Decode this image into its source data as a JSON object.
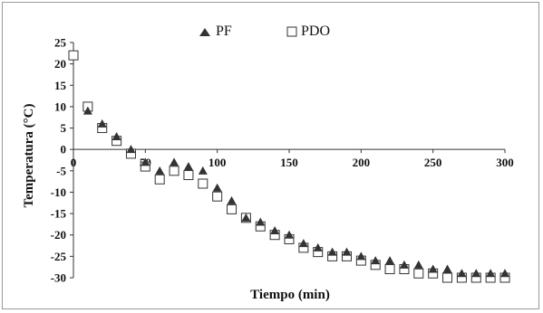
{
  "chart_data": {
    "type": "scatter",
    "title": "",
    "xlabel": "Tiempo (min)",
    "ylabel": "Temperatura (°C)",
    "xlim": [
      0,
      300
    ],
    "ylim": [
      -30,
      25
    ],
    "xticks": [
      "0",
      "50",
      "100",
      "150",
      "200",
      "250",
      "300"
    ],
    "yticks": [
      "25",
      "20",
      "15",
      "10",
      "5",
      "0",
      "-5",
      "-10",
      "-15",
      "-20",
      "-25",
      "-30"
    ],
    "grid": false,
    "legend_position": "top",
    "series": [
      {
        "name": "PF",
        "marker": "filled-triangle",
        "color": "#333333",
        "points": [
          [
            10,
            9
          ],
          [
            20,
            6
          ],
          [
            30,
            3
          ],
          [
            40,
            0
          ],
          [
            50,
            -3
          ],
          [
            60,
            -5
          ],
          [
            70,
            -3
          ],
          [
            80,
            -4
          ],
          [
            90,
            -5
          ],
          [
            100,
            -9
          ],
          [
            110,
            -12
          ],
          [
            120,
            -16
          ],
          [
            130,
            -17
          ],
          [
            140,
            -19
          ],
          [
            150,
            -20
          ],
          [
            160,
            -22
          ],
          [
            170,
            -23
          ],
          [
            180,
            -24
          ],
          [
            190,
            -24
          ],
          [
            200,
            -25
          ],
          [
            210,
            -26
          ],
          [
            220,
            -26
          ],
          [
            230,
            -27
          ],
          [
            240,
            -27
          ],
          [
            250,
            -28
          ],
          [
            260,
            -28
          ],
          [
            270,
            -29
          ],
          [
            280,
            -29
          ],
          [
            290,
            -29
          ],
          [
            300,
            -29
          ]
        ]
      },
      {
        "name": "PDO",
        "marker": "open-square",
        "color": "#333333",
        "points": [
          [
            0,
            22
          ],
          [
            10,
            10
          ],
          [
            20,
            5
          ],
          [
            30,
            2
          ],
          [
            40,
            -1
          ],
          [
            50,
            -4
          ],
          [
            60,
            -7
          ],
          [
            70,
            -5
          ],
          [
            80,
            -6
          ],
          [
            90,
            -8
          ],
          [
            100,
            -11
          ],
          [
            110,
            -14
          ],
          [
            120,
            -16
          ],
          [
            130,
            -18
          ],
          [
            140,
            -20
          ],
          [
            150,
            -21
          ],
          [
            160,
            -23
          ],
          [
            170,
            -24
          ],
          [
            180,
            -25
          ],
          [
            190,
            -25
          ],
          [
            200,
            -26
          ],
          [
            210,
            -27
          ],
          [
            220,
            -28
          ],
          [
            230,
            -28
          ],
          [
            240,
            -29
          ],
          [
            250,
            -29
          ],
          [
            260,
            -30
          ],
          [
            270,
            -30
          ],
          [
            280,
            -30
          ],
          [
            290,
            -30
          ],
          [
            300,
            -30
          ]
        ]
      }
    ]
  }
}
